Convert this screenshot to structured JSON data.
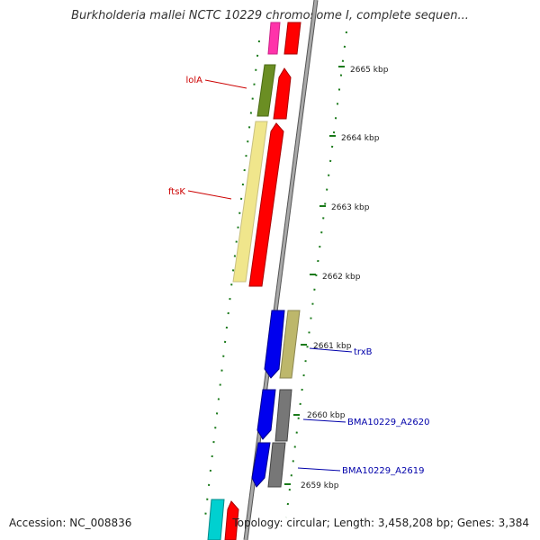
{
  "title": "Burkholderia mallei NCTC 10229 chromosome I, complete sequen...",
  "footer": {
    "accession": "Accession: NC_008836",
    "summary": "Topology: circular; Length: 3,458,208 bp; Genes: 3,384"
  },
  "ticks": [
    "2665 kbp",
    "2664 kbp",
    "2663 kbp",
    "2662 kbp",
    "2661 kbp",
    "2660 kbp",
    "2659 kbp"
  ],
  "gene_labels": [
    "lolA",
    "ftsK",
    "trxB",
    "BMA10229_A2620",
    "BMA10229_A2619"
  ],
  "colors": {
    "backbone": "#888888",
    "gene_label_left": "#cc0000",
    "gene_label_right": "#0000aa",
    "tick_mark": "#1a7a1a",
    "magenta": "#ff33aa",
    "red": "#ff0000",
    "olive": "#6b8e23",
    "khaki": "#f0e68c",
    "blue": "#0000ee",
    "darkkhaki": "#bdb76b",
    "gray": "#777777",
    "cyan": "#00d0d0"
  }
}
